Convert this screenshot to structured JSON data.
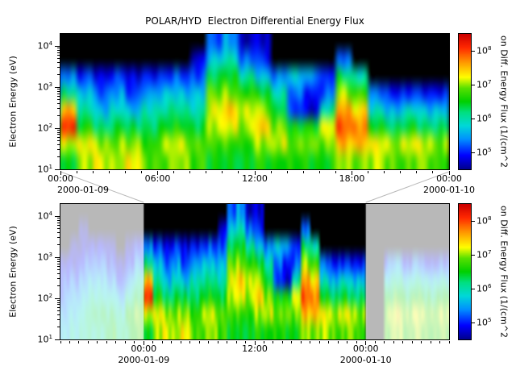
{
  "title": "POLAR/HYD  Electron Differential Energy Flux",
  "chart_data": {
    "type": "heatmap",
    "title": "POLAR/HYD  Electron Differential Energy Flux",
    "ylabel": "Electron Energy (eV)",
    "colorbar_label": "on Diff. Energy Flux (1/(cm^2",
    "flux_log10_min": 4.5,
    "flux_log10_max": 8.5,
    "energy_log10_min": 1.0,
    "energy_log10_max": 4.3,
    "time_start_hour": -9,
    "time_end_hour": 33,
    "hours_per_column": 1,
    "no_data_color": "#000000",
    "colormap": [
      [
        0.0,
        "#000090"
      ],
      [
        0.1,
        "#0000ff"
      ],
      [
        0.22,
        "#0090ff"
      ],
      [
        0.32,
        "#00d8d8"
      ],
      [
        0.42,
        "#00e080"
      ],
      [
        0.5,
        "#00d000"
      ],
      [
        0.6,
        "#58e000"
      ],
      [
        0.68,
        "#ffff00"
      ],
      [
        0.8,
        "#ff9000"
      ],
      [
        0.9,
        "#ff2800"
      ],
      [
        1.0,
        "#cc0000"
      ]
    ],
    "y_ticks": [
      {
        "log10": 1,
        "base": "10",
        "exp": "1"
      },
      {
        "log10": 2,
        "base": "10",
        "exp": "2"
      },
      {
        "log10": 3,
        "base": "10",
        "exp": "3"
      },
      {
        "log10": 4,
        "base": "10",
        "exp": "4"
      }
    ],
    "colorbar_ticks": [
      {
        "log10": 5,
        "base": "10",
        "exp": "5"
      },
      {
        "log10": 6,
        "base": "10",
        "exp": "6"
      },
      {
        "log10": 7,
        "base": "10",
        "exp": "7"
      },
      {
        "log10": 8,
        "base": "10",
        "exp": "8"
      }
    ],
    "panels": [
      {
        "id": "top",
        "hour_range": [
          0,
          24
        ],
        "x_ticks": [
          {
            "hour": 0,
            "label": "00:00"
          },
          {
            "hour": 6,
            "label": "06:00"
          },
          {
            "hour": 12,
            "label": "12:00"
          },
          {
            "hour": 18,
            "label": "18:00"
          },
          {
            "hour": 24,
            "label": "00:00"
          }
        ],
        "date_labels": [
          {
            "hour": 0,
            "label": "2000-01-09"
          },
          {
            "hour": 24,
            "label": "2000-01-10"
          }
        ],
        "faded_hour_ranges": []
      },
      {
        "id": "bottom",
        "hour_range": [
          -9,
          33
        ],
        "x_ticks": [
          {
            "hour": 0,
            "label": "00:00"
          },
          {
            "hour": 12,
            "label": "12:00"
          },
          {
            "hour": 24,
            "label": "00:00"
          }
        ],
        "date_labels": [
          {
            "hour": 0,
            "label": "2000-01-09"
          },
          {
            "hour": 24,
            "label": "2000-01-10"
          }
        ],
        "faded_hour_ranges": [
          [
            -9,
            0
          ],
          [
            24,
            33
          ]
        ]
      }
    ],
    "grid_log10_flux": [
      [
        5.6,
        5.4,
        5.2,
        5.0,
        4.7,
        0,
        0,
        0
      ],
      [
        5.9,
        5.7,
        5.5,
        5.2,
        4.8,
        4.6,
        0,
        0
      ],
      [
        6.1,
        6.0,
        5.7,
        5.4,
        5.1,
        4.7,
        4.6,
        0
      ],
      [
        6.0,
        6.2,
        5.9,
        5.5,
        5.1,
        4.7,
        0,
        0
      ],
      [
        6.2,
        6.4,
        6.0,
        5.7,
        5.3,
        4.9,
        0,
        0
      ],
      [
        6.4,
        6.2,
        5.8,
        5.3,
        4.9,
        4.6,
        0,
        0
      ],
      [
        6.2,
        6.0,
        5.5,
        5.0,
        4.6,
        0,
        0,
        0
      ],
      [
        6.4,
        6.6,
        6.1,
        5.5,
        5.0,
        4.6,
        0,
        0
      ],
      [
        6.6,
        6.8,
        6.3,
        5.9,
        5.3,
        4.9,
        0,
        0
      ],
      [
        6.5,
        7.2,
        8.2,
        7.6,
        6.2,
        5.4,
        0,
        0
      ],
      [
        7.0,
        7.2,
        6.5,
        6.0,
        5.6,
        5.0,
        0,
        0
      ],
      [
        7.2,
        7.0,
        6.2,
        5.6,
        5.2,
        4.8,
        0,
        0
      ],
      [
        7.1,
        7.0,
        6.4,
        5.9,
        5.5,
        5.1,
        0,
        0
      ],
      [
        7.2,
        6.9,
        6.2,
        5.5,
        5.0,
        4.7,
        0,
        0
      ],
      [
        6.9,
        6.7,
        6.3,
        6.0,
        5.5,
        5.0,
        0,
        0
      ],
      [
        6.8,
        7.0,
        6.4,
        6.0,
        5.6,
        5.0,
        0,
        0
      ],
      [
        7.0,
        7.1,
        6.5,
        6.1,
        5.6,
        5.1,
        0,
        0
      ],
      [
        6.8,
        6.9,
        6.4,
        6.0,
        5.7,
        5.2,
        4.8,
        0
      ],
      [
        6.4,
        6.7,
        7.0,
        7.1,
        6.8,
        6.2,
        5.6,
        5.1
      ],
      [
        6.5,
        6.8,
        7.3,
        7.5,
        7.0,
        6.5,
        6.0,
        5.5
      ],
      [
        6.4,
        6.6,
        7.0,
        7.1,
        6.6,
        6.0,
        5.2,
        4.6
      ],
      [
        6.6,
        7.0,
        7.4,
        7.0,
        6.4,
        5.6,
        5.0,
        4.7
      ],
      [
        6.6,
        7.2,
        7.0,
        6.4,
        6.0,
        5.4,
        0,
        0
      ],
      [
        6.5,
        6.8,
        6.4,
        5.0,
        5.2,
        5.6,
        0,
        0
      ],
      [
        6.6,
        7.0,
        6.6,
        4.8,
        5.0,
        5.5,
        0,
        0
      ],
      [
        6.5,
        6.9,
        7.2,
        6.0,
        5.2,
        5.0,
        0,
        0
      ],
      [
        7.0,
        7.5,
        7.9,
        7.6,
        7.0,
        6.2,
        5.2,
        0
      ],
      [
        7.0,
        7.6,
        7.8,
        7.4,
        6.8,
        6.0,
        0,
        0
      ],
      [
        7.0,
        7.2,
        6.4,
        5.8,
        5.2,
        0,
        0,
        0
      ],
      [
        6.9,
        7.1,
        6.3,
        5.6,
        5.0,
        0,
        0,
        0
      ],
      [
        6.8,
        7.2,
        6.4,
        5.8,
        5.0,
        0,
        0,
        0
      ],
      [
        6.9,
        7.1,
        6.2,
        5.6,
        4.9,
        0,
        0,
        0
      ],
      [
        6.8,
        7.0,
        6.3,
        5.7,
        5.0,
        0,
        0,
        0
      ],
      [
        0,
        0,
        0,
        0,
        0,
        0,
        0,
        0
      ],
      [
        0,
        0,
        0,
        0,
        0,
        0,
        0,
        0
      ],
      [
        6.8,
        7.0,
        6.4,
        5.8,
        5.2,
        0,
        0,
        0
      ],
      [
        7.0,
        7.2,
        6.6,
        6.0,
        5.4,
        0,
        0,
        0
      ],
      [
        6.8,
        7.0,
        6.4,
        5.8,
        5.0,
        0,
        0,
        0
      ],
      [
        6.9,
        7.1,
        6.5,
        5.9,
        5.2,
        0,
        0,
        0
      ],
      [
        6.8,
        7.0,
        6.4,
        5.8,
        5.0,
        0,
        0,
        0
      ],
      [
        6.7,
        6.9,
        6.3,
        5.7,
        4.9,
        0,
        0,
        0
      ],
      [
        6.8,
        7.0,
        6.4,
        5.8,
        5.0,
        0,
        0,
        0
      ]
    ]
  },
  "connector": {
    "color": "#b8b8b8"
  },
  "fade": {
    "color": "#ffffff",
    "alpha": 0.72
  }
}
